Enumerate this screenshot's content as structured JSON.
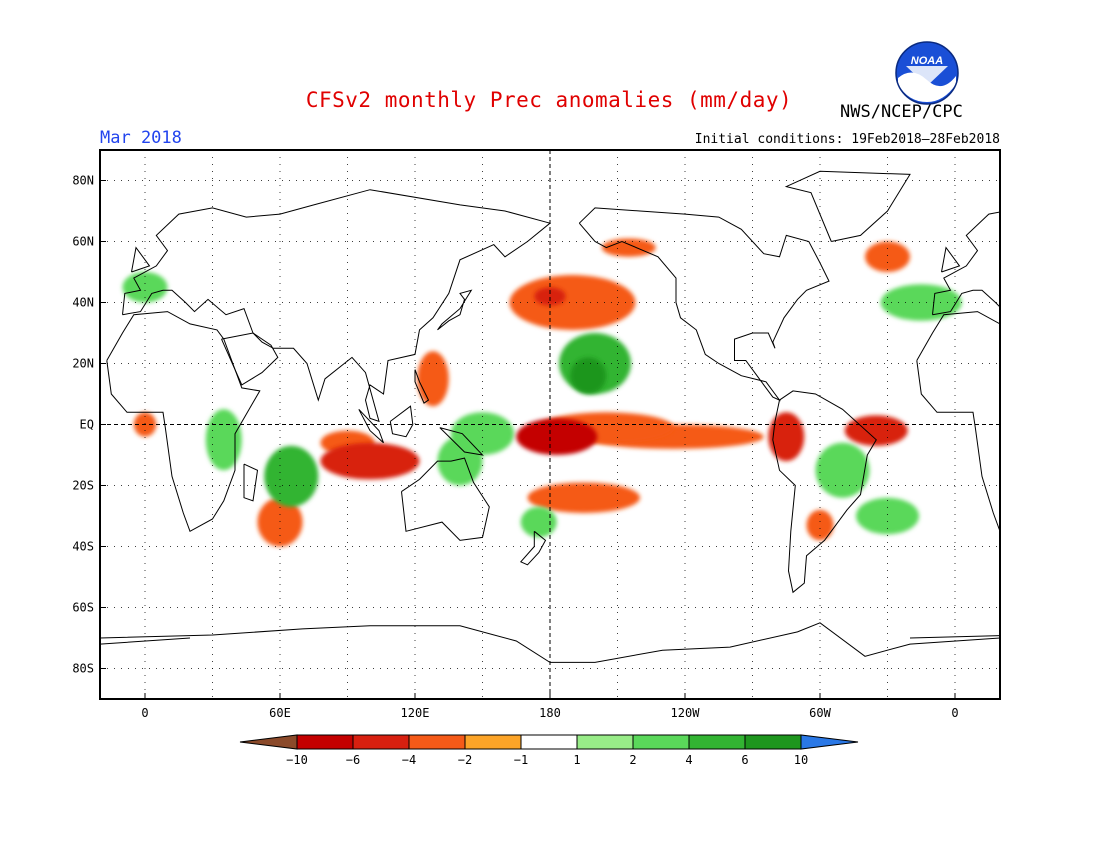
{
  "title": "CFSv2 monthly Prec anomalies (mm/day)",
  "valid_month": "Mar 2018",
  "initial_conditions": "Initial conditions: 19Feb2018–28Feb2018",
  "organization": "NWS/NCEP/CPC",
  "logo_text": "NOAA",
  "map": {
    "projection": "equirectangular",
    "lon_range": [
      -20,
      380
    ],
    "lat_range": [
      -90,
      90
    ],
    "gridlines": "dotted",
    "y_ticks": [
      {
        "lat": 80,
        "label": "80N"
      },
      {
        "lat": 60,
        "label": "60N"
      },
      {
        "lat": 40,
        "label": "40N"
      },
      {
        "lat": 20,
        "label": "20N"
      },
      {
        "lat": 0,
        "label": "EQ"
      },
      {
        "lat": -20,
        "label": "20S"
      },
      {
        "lat": -40,
        "label": "40S"
      },
      {
        "lat": -60,
        "label": "60S"
      },
      {
        "lat": -80,
        "label": "80S"
      }
    ],
    "x_ticks": [
      {
        "lon": 0,
        "label": "0"
      },
      {
        "lon": 60,
        "label": "60E"
      },
      {
        "lon": 120,
        "label": "120E"
      },
      {
        "lon": 180,
        "label": "180"
      },
      {
        "lon": 240,
        "label": "120W"
      },
      {
        "lon": 300,
        "label": "60W"
      },
      {
        "lon": 360,
        "label": "0"
      }
    ]
  },
  "colorbar": {
    "bins": [
      {
        "range": "< -10",
        "color": "#8b4a2a"
      },
      {
        "range": "-10 to -6",
        "color": "#c40000"
      },
      {
        "range": "-6 to -4",
        "color": "#d82010"
      },
      {
        "range": "-4 to -2",
        "color": "#f55a18"
      },
      {
        "range": "-2 to -1",
        "color": "#fca428"
      },
      {
        "range": "-1 to 1",
        "color": "#ffffff"
      },
      {
        "range": "1 to 2",
        "color": "#98ec88"
      },
      {
        "range": "2 to 4",
        "color": "#5ad85a"
      },
      {
        "range": "4 to 6",
        "color": "#32b432"
      },
      {
        "range": "6 to 10",
        "color": "#1e961e"
      },
      {
        "range": "> 10",
        "color": "#2a78e6"
      }
    ],
    "labels": [
      "-10",
      "-6",
      "-4",
      "-2",
      "-1",
      "1",
      "2",
      "4",
      "6",
      "10"
    ]
  },
  "anomaly_regions": [
    {
      "name": "central-pacific-dry-core",
      "lon": 183,
      "lat": -4,
      "value": -8
    },
    {
      "name": "central-pacific-dry-band",
      "lon": 205,
      "lat": -1,
      "value": -3
    },
    {
      "name": "eastern-pacific-dry-band",
      "lon": 235,
      "lat": -4,
      "value": -2
    },
    {
      "name": "north-pacific-dry",
      "lon": 190,
      "lat": 40,
      "value": -2
    },
    {
      "name": "north-pacific-dry-core",
      "lon": 180,
      "lat": 42,
      "value": -4
    },
    {
      "name": "south-pacific-dry",
      "lon": 195,
      "lat": -24,
      "value": -2
    },
    {
      "name": "indian-ocean-dry",
      "lon": 100,
      "lat": -12,
      "value": -5
    },
    {
      "name": "indian-ocean-dry-extension",
      "lon": 90,
      "lat": -6,
      "value": -2
    },
    {
      "name": "southwest-indian-ocean-dry",
      "lon": 60,
      "lat": -32,
      "value": -2
    },
    {
      "name": "philippines-dry",
      "lon": 128,
      "lat": 15,
      "value": -2
    },
    {
      "name": "northern-south-america-dry",
      "lon": 285,
      "lat": -4,
      "value": -4
    },
    {
      "name": "equatorial-atlantic-dry",
      "lon": 325,
      "lat": -2,
      "value": -4
    },
    {
      "name": "south-america-dry",
      "lon": 300,
      "lat": -33,
      "value": -2
    },
    {
      "name": "gulf-of-guinea-dry",
      "lon": 0,
      "lat": 0,
      "value": -2
    },
    {
      "name": "alaska-coast-dry",
      "lon": 215,
      "lat": 58,
      "value": -2
    },
    {
      "name": "north-atlantic-dry",
      "lon": 330,
      "lat": 55,
      "value": -2
    },
    {
      "name": "north-pacific-wet",
      "lon": 200,
      "lat": 20,
      "value": 4
    },
    {
      "name": "north-pacific-wet-core",
      "lon": 197,
      "lat": 16,
      "value": 6
    },
    {
      "name": "western-pacific-wet",
      "lon": 150,
      "lat": -3,
      "value": 3
    },
    {
      "name": "maritime-continent-wet",
      "lon": 140,
      "lat": -12,
      "value": 2
    },
    {
      "name": "southwest-indian-wet",
      "lon": 65,
      "lat": -17,
      "value": 4
    },
    {
      "name": "east-africa-wet",
      "lon": 35,
      "lat": -5,
      "value": 3
    },
    {
      "name": "south-america-wet",
      "lon": 310,
      "lat": -15,
      "value": 2
    },
    {
      "name": "south-atlantic-wet",
      "lon": 330,
      "lat": -30,
      "value": 2
    },
    {
      "name": "north-atlantic-wet",
      "lon": 345,
      "lat": 40,
      "value": 2
    },
    {
      "name": "europe-wet",
      "lon": 0,
      "lat": 45,
      "value": 2
    },
    {
      "name": "south-pacific-wet",
      "lon": 175,
      "lat": -32,
      "value": 2
    }
  ]
}
